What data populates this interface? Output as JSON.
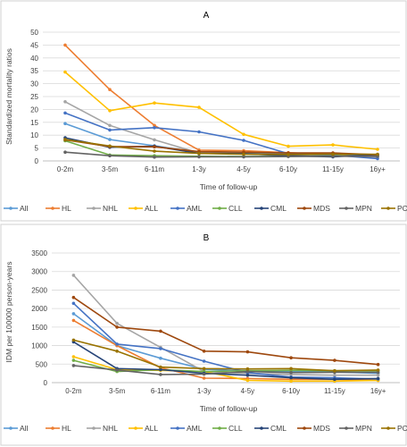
{
  "chart_data": [
    {
      "type": "line",
      "title": "A",
      "xlabel": "Time of follow-up",
      "ylabel": "Standardized mortality ratios",
      "ylim": [
        0,
        50
      ],
      "yticks": [
        "0",
        "5",
        "10",
        "15",
        "20",
        "25",
        "30",
        "35",
        "40",
        "45",
        "50"
      ],
      "categories": [
        "0-2m",
        "3-5m",
        "6-11m",
        "1-3y",
        "4-5y",
        "6-10y",
        "11-15y",
        "16y+"
      ],
      "grid": true,
      "legend_position": "bottom",
      "series": [
        {
          "name": "All",
          "color": "#5b9bd5",
          "values": [
            14.5,
            8.3,
            5.9,
            3.3,
            3.0,
            2.7,
            2.6,
            2.0
          ]
        },
        {
          "name": "HL",
          "color": "#ed7d31",
          "values": [
            45.0,
            27.7,
            13.8,
            4.2,
            4.0,
            3.2,
            2.4,
            1.5
          ]
        },
        {
          "name": "NHL",
          "color": "#a5a5a5",
          "values": [
            23.0,
            13.8,
            8.2,
            3.1,
            2.7,
            2.2,
            1.9,
            1.6
          ]
        },
        {
          "name": "ALL",
          "color": "#ffc000",
          "values": [
            34.5,
            19.5,
            22.5,
            20.8,
            10.3,
            5.7,
            6.2,
            4.5
          ]
        },
        {
          "name": "AML",
          "color": "#4472c4",
          "values": [
            18.6,
            12.0,
            12.9,
            11.3,
            8.0,
            2.8,
            2.3,
            0.9
          ]
        },
        {
          "name": "CLL",
          "color": "#70ad47",
          "values": [
            7.8,
            2.3,
            2.0,
            1.8,
            1.7,
            1.8,
            1.9,
            2.0
          ]
        },
        {
          "name": "CML",
          "color": "#264478",
          "values": [
            9.0,
            5.3,
            5.7,
            2.9,
            2.8,
            2.0,
            1.6,
            2.5
          ]
        },
        {
          "name": "MDS",
          "color": "#9e480e",
          "values": [
            8.2,
            5.6,
            5.5,
            3.6,
            3.4,
            3.1,
            3.1,
            2.4
          ]
        },
        {
          "name": "MPN",
          "color": "#636363",
          "values": [
            3.4,
            2.0,
            1.5,
            1.6,
            1.6,
            1.7,
            1.8,
            1.8
          ]
        },
        {
          "name": "PCM",
          "color": "#997300",
          "values": [
            8.3,
            5.8,
            3.8,
            2.9,
            2.6,
            2.5,
            2.6,
            2.6
          ]
        }
      ]
    },
    {
      "type": "line",
      "title": "B",
      "xlabel": "Time of follow-up",
      "ylabel": "IDM per 100000 person-years",
      "ylim": [
        0,
        3500
      ],
      "yticks": [
        "0",
        "500",
        "1000",
        "1500",
        "2000",
        "2500",
        "3000",
        "3500"
      ],
      "categories": [
        "0-2m",
        "3-5m",
        "6-11m",
        "1-3y",
        "4-5y",
        "6-10y",
        "11-15y",
        "16y+"
      ],
      "grid": true,
      "legend_position": "bottom",
      "series": [
        {
          "name": "All",
          "color": "#5b9bd5",
          "values": [
            1860,
            1000,
            660,
            360,
            320,
            300,
            290,
            250
          ]
        },
        {
          "name": "HL",
          "color": "#ed7d31",
          "values": [
            1680,
            1000,
            400,
            120,
            110,
            90,
            90,
            60
          ]
        },
        {
          "name": "NHL",
          "color": "#a5a5a5",
          "values": [
            2900,
            1600,
            950,
            300,
            250,
            220,
            200,
            200
          ]
        },
        {
          "name": "ALL",
          "color": "#ffc000",
          "values": [
            700,
            350,
            330,
            300,
            60,
            40,
            40,
            60
          ]
        },
        {
          "name": "AML",
          "color": "#4472c4",
          "values": [
            2140,
            1040,
            920,
            580,
            270,
            150,
            130,
            100
          ]
        },
        {
          "name": "CLL",
          "color": "#70ad47",
          "values": [
            600,
            300,
            350,
            300,
            320,
            330,
            320,
            320
          ]
        },
        {
          "name": "CML",
          "color": "#264478",
          "values": [
            1100,
            380,
            350,
            250,
            200,
            130,
            90,
            110
          ]
        },
        {
          "name": "MDS",
          "color": "#9e480e",
          "values": [
            2300,
            1500,
            1390,
            850,
            830,
            670,
            600,
            490
          ]
        },
        {
          "name": "MPN",
          "color": "#636363",
          "values": [
            460,
            340,
            220,
            230,
            300,
            270,
            280,
            280
          ]
        },
        {
          "name": "PCM",
          "color": "#997300",
          "values": [
            1150,
            850,
            420,
            380,
            370,
            380,
            320,
            340
          ]
        }
      ]
    }
  ]
}
